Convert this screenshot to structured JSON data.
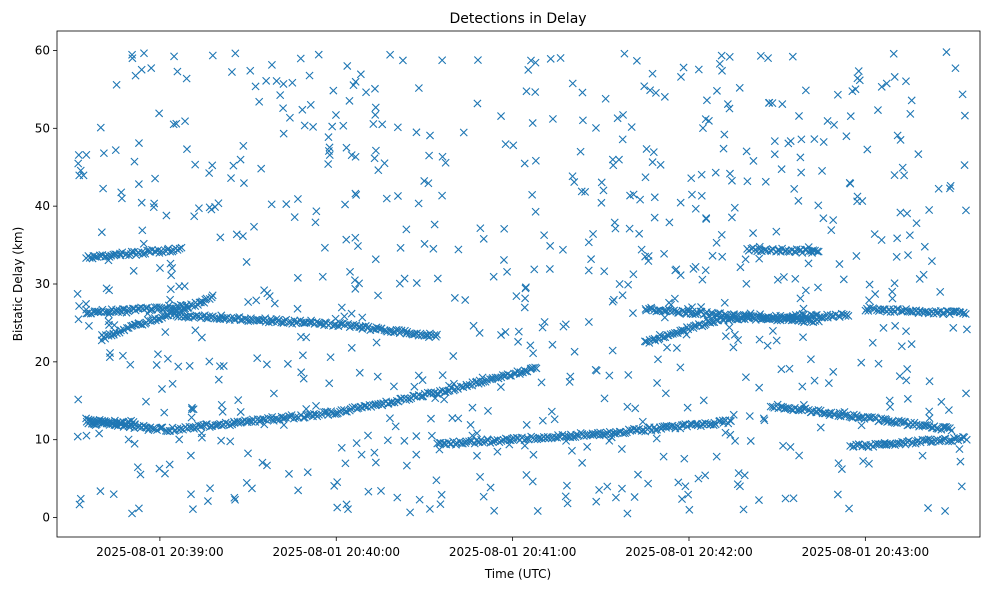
{
  "chart_data": {
    "type": "scatter",
    "title": "Detections in Delay",
    "xlabel": "Time (UTC)",
    "ylabel": "Bistatic Delay (km)",
    "marker": "x",
    "color": "#1f77b4",
    "grid": false,
    "xlim": [
      "2025-08-01 20:38:25",
      "2025-08-01 20:43:39"
    ],
    "ylim": [
      -2.5,
      62.5
    ],
    "x_ticks": [
      {
        "t": "2025-08-01 20:39:00",
        "label": "2025-08-01 20:39:00"
      },
      {
        "t": "2025-08-01 20:40:00",
        "label": "2025-08-01 20:40:00"
      },
      {
        "t": "2025-08-01 20:41:00",
        "label": "2025-08-01 20:41:00"
      },
      {
        "t": "2025-08-01 20:42:00",
        "label": "2025-08-01 20:42:00"
      },
      {
        "t": "2025-08-01 20:43:00",
        "label": "2025-08-01 20:43:00"
      }
    ],
    "y_ticks": [
      0,
      10,
      20,
      30,
      40,
      50,
      60
    ],
    "tracks": [
      {
        "x": [
          "2025-08-01 20:38:35",
          "2025-08-01 20:39:03",
          "2025-08-01 20:40:00",
          "2025-08-01 20:40:36",
          "2025-08-01 20:41:09"
        ],
        "y": [
          12.3,
          11.3,
          13.5,
          16.2,
          19.3
        ]
      },
      {
        "x": [
          "2025-08-01 20:39:05",
          "2025-08-01 20:40:00",
          "2025-08-01 20:40:35"
        ],
        "y": [
          26.0,
          24.8,
          23.3
        ]
      },
      {
        "x": [
          "2025-08-01 20:38:35",
          "2025-08-01 20:39:08"
        ],
        "y": [
          33.4,
          34.5
        ]
      },
      {
        "x": [
          "2025-08-01 20:38:35",
          "2025-08-01 20:39:10"
        ],
        "y": [
          26.3,
          27.2
        ]
      },
      {
        "x": [
          "2025-08-01 20:38:40",
          "2025-08-01 20:39:18"
        ],
        "y": [
          23.0,
          28.2
        ]
      },
      {
        "x": [
          "2025-08-01 20:38:35",
          "2025-08-01 20:38:52"
        ],
        "y": [
          12.5,
          12.0
        ]
      },
      {
        "x": [
          "2025-08-01 20:40:35",
          "2025-08-01 20:41:30",
          "2025-08-01 20:42:00",
          "2025-08-01 20:42:15"
        ],
        "y": [
          9.4,
          10.8,
          11.8,
          12.4
        ]
      },
      {
        "x": [
          "2025-08-01 20:41:45",
          "2025-08-01 20:42:15",
          "2025-08-01 20:42:45"
        ],
        "y": [
          26.8,
          25.9,
          25.2
        ]
      },
      {
        "x": [
          "2025-08-01 20:41:45",
          "2025-08-01 20:42:10",
          "2025-08-01 20:42:55"
        ],
        "y": [
          22.5,
          25.5,
          26.0
        ]
      },
      {
        "x": [
          "2025-08-01 20:42:20",
          "2025-08-01 20:42:45"
        ],
        "y": [
          34.5,
          34.1
        ]
      },
      {
        "x": [
          "2025-08-01 20:42:28",
          "2025-08-01 20:43:30"
        ],
        "y": [
          14.4,
          11.3
        ]
      },
      {
        "x": [
          "2025-08-01 20:43:00",
          "2025-08-01 20:43:35"
        ],
        "y": [
          26.8,
          26.2
        ]
      },
      {
        "x": [
          "2025-08-01 20:42:55",
          "2025-08-01 20:43:35"
        ],
        "y": [
          9.1,
          10.2
        ]
      }
    ],
    "noise": {
      "count": 760,
      "xlim": [
        "2025-08-01 20:38:32",
        "2025-08-01 20:43:35"
      ],
      "ylim": [
        0.5,
        59.8
      ]
    }
  }
}
